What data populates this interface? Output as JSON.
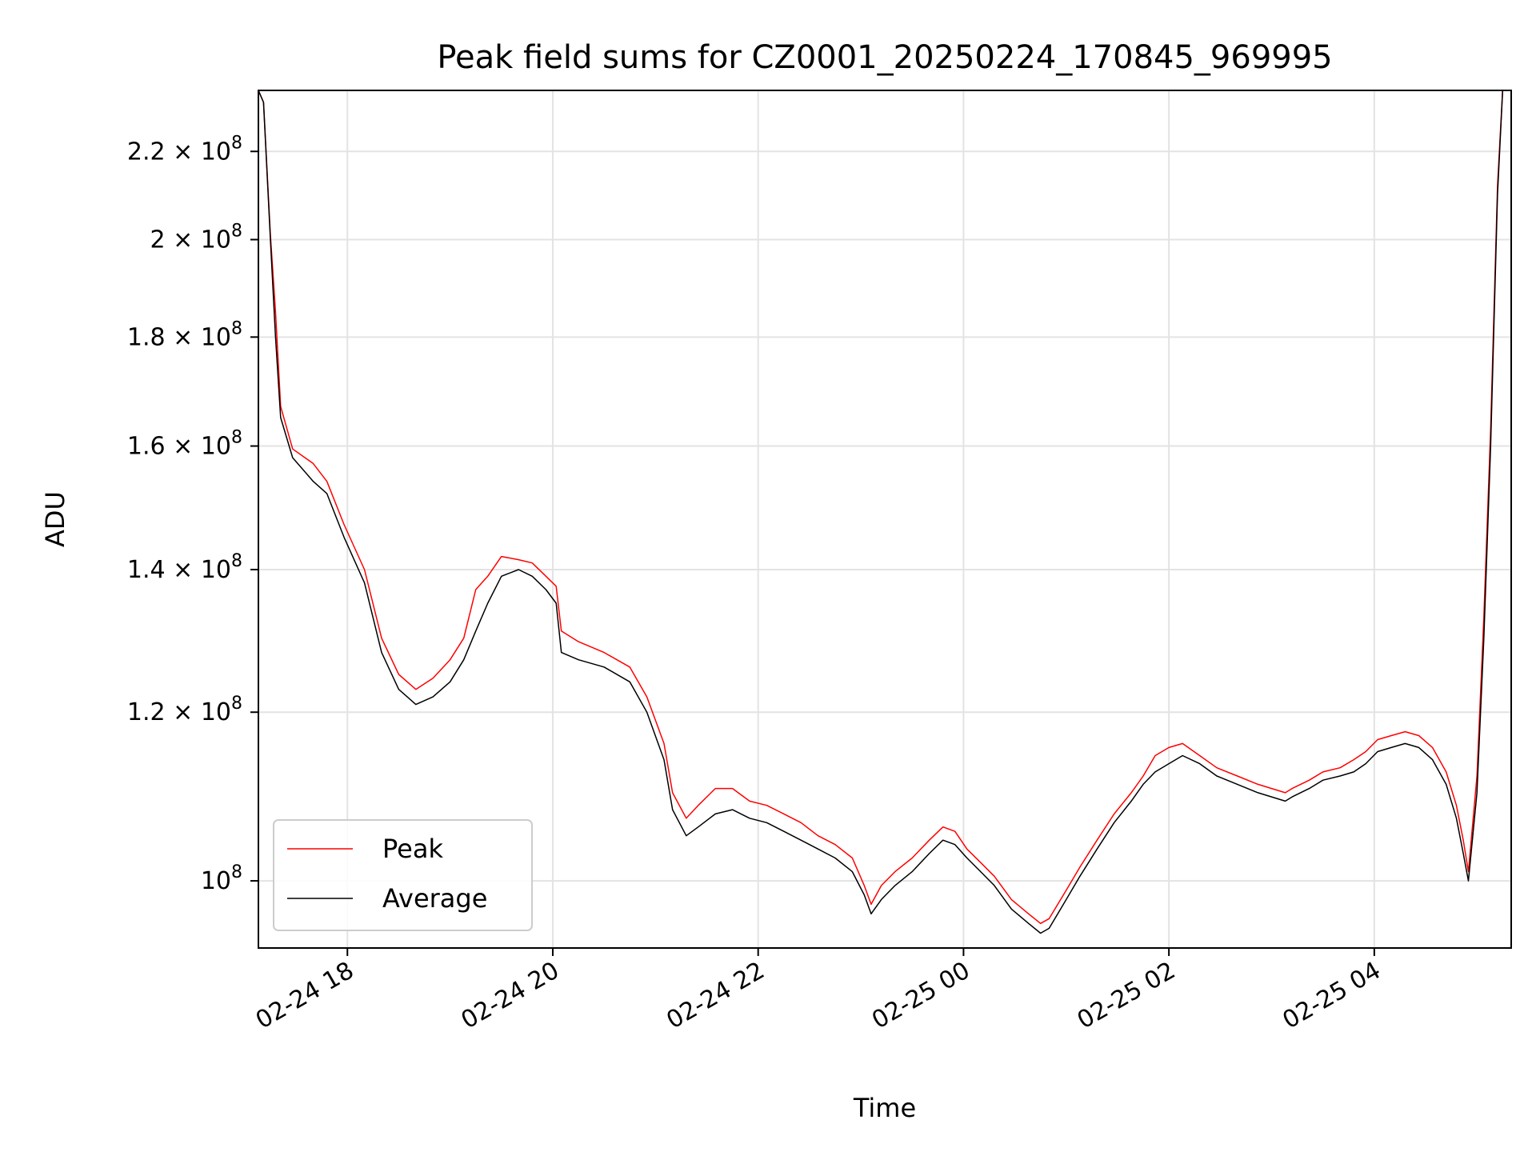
{
  "chart_data": {
    "type": "line",
    "title": "Peak field sums for CZ0001_20250224_170845_969995",
    "xlabel": "Time",
    "ylabel": "ADU",
    "y_scale": "log",
    "ylim": [
      93000000,
      235000000
    ],
    "xlim": [
      "2025-02-24 17:08",
      "2025-02-25 05:20"
    ],
    "grid": true,
    "legend": {
      "placement": "lower-left",
      "entries": [
        "Peak",
        "Average"
      ]
    },
    "x_ticks": [
      {
        "value": "2025-02-24 18:00",
        "label": "02-24 18"
      },
      {
        "value": "2025-02-24 20:00",
        "label": "02-24 20"
      },
      {
        "value": "2025-02-24 22:00",
        "label": "02-24 22"
      },
      {
        "value": "2025-02-25 00:00",
        "label": "02-25 00"
      },
      {
        "value": "2025-02-25 02:00",
        "label": "02-25 02"
      },
      {
        "value": "2025-02-25 04:00",
        "label": "02-25 04"
      }
    ],
    "y_ticks": [
      {
        "value": 100000000,
        "mant": "",
        "exp": "8"
      },
      {
        "value": 120000000,
        "mant": "1.2",
        "exp": "8"
      },
      {
        "value": 140000000,
        "mant": "1.4",
        "exp": "8"
      },
      {
        "value": 160000000,
        "mant": "1.6",
        "exp": "8"
      },
      {
        "value": 180000000,
        "mant": "1.8",
        "exp": "8"
      },
      {
        "value": 200000000,
        "mant": "2",
        "exp": "8"
      },
      {
        "value": 220000000,
        "mant": "2.2",
        "exp": "8"
      }
    ],
    "series": [
      {
        "name": "Average",
        "color": "#000000",
        "points": [
          [
            "2025-02-24 17:08",
            235000000
          ],
          [
            "2025-02-24 17:11",
            232000000
          ],
          [
            "2025-02-24 17:15",
            200000000
          ],
          [
            "2025-02-24 17:18",
            180000000
          ],
          [
            "2025-02-24 17:21",
            165000000
          ],
          [
            "2025-02-24 17:28",
            158000000
          ],
          [
            "2025-02-24 17:40",
            154000000
          ],
          [
            "2025-02-24 17:48",
            152000000
          ],
          [
            "2025-02-24 17:58",
            145000000
          ],
          [
            "2025-02-24 18:10",
            138000000
          ],
          [
            "2025-02-24 18:20",
            128000000
          ],
          [
            "2025-02-24 18:30",
            123000000
          ],
          [
            "2025-02-24 18:40",
            121000000
          ],
          [
            "2025-02-24 18:50",
            122000000
          ],
          [
            "2025-02-24 19:00",
            124000000
          ],
          [
            "2025-02-24 19:08",
            127000000
          ],
          [
            "2025-02-24 19:15",
            131000000
          ],
          [
            "2025-02-24 19:22",
            135000000
          ],
          [
            "2025-02-24 19:30",
            139000000
          ],
          [
            "2025-02-24 19:40",
            140000000
          ],
          [
            "2025-02-24 19:48",
            139000000
          ],
          [
            "2025-02-24 19:56",
            137000000
          ],
          [
            "2025-02-24 20:02",
            135000000
          ],
          [
            "2025-02-24 20:05",
            128000000
          ],
          [
            "2025-02-24 20:15",
            127000000
          ],
          [
            "2025-02-24 20:30",
            126000000
          ],
          [
            "2025-02-24 20:45",
            124000000
          ],
          [
            "2025-02-24 20:55",
            120000000
          ],
          [
            "2025-02-24 21:05",
            114000000
          ],
          [
            "2025-02-24 21:10",
            108000000
          ],
          [
            "2025-02-24 21:18",
            105000000
          ],
          [
            "2025-02-24 21:25",
            106000000
          ],
          [
            "2025-02-24 21:35",
            107500000
          ],
          [
            "2025-02-24 21:45",
            108000000
          ],
          [
            "2025-02-24 21:55",
            107000000
          ],
          [
            "2025-02-24 22:05",
            106500000
          ],
          [
            "2025-02-24 22:15",
            105500000
          ],
          [
            "2025-02-24 22:25",
            104500000
          ],
          [
            "2025-02-24 22:35",
            103500000
          ],
          [
            "2025-02-24 22:45",
            102500000
          ],
          [
            "2025-02-24 22:55",
            101000000
          ],
          [
            "2025-02-24 23:02",
            98500000
          ],
          [
            "2025-02-24 23:06",
            96500000
          ],
          [
            "2025-02-24 23:12",
            98000000
          ],
          [
            "2025-02-24 23:20",
            99500000
          ],
          [
            "2025-02-24 23:30",
            101000000
          ],
          [
            "2025-02-24 23:40",
            103000000
          ],
          [
            "2025-02-24 23:48",
            104500000
          ],
          [
            "2025-02-24 23:55",
            104000000
          ],
          [
            "2025-02-25 00:02",
            102500000
          ],
          [
            "2025-02-25 00:10",
            101000000
          ],
          [
            "2025-02-25 00:18",
            99500000
          ],
          [
            "2025-02-25 00:28",
            97000000
          ],
          [
            "2025-02-25 00:38",
            95500000
          ],
          [
            "2025-02-25 00:45",
            94500000
          ],
          [
            "2025-02-25 00:50",
            95000000
          ],
          [
            "2025-02-25 01:00",
            98000000
          ],
          [
            "2025-02-25 01:08",
            100500000
          ],
          [
            "2025-02-25 01:18",
            103500000
          ],
          [
            "2025-02-25 01:28",
            106500000
          ],
          [
            "2025-02-25 01:38",
            109000000
          ],
          [
            "2025-02-25 01:45",
            111000000
          ],
          [
            "2025-02-25 01:52",
            112500000
          ],
          [
            "2025-02-25 02:00",
            113500000
          ],
          [
            "2025-02-25 02:08",
            114500000
          ],
          [
            "2025-02-25 02:18",
            113500000
          ],
          [
            "2025-02-25 02:28",
            112000000
          ],
          [
            "2025-02-25 02:40",
            111000000
          ],
          [
            "2025-02-25 02:52",
            110000000
          ],
          [
            "2025-02-25 03:00",
            109500000
          ],
          [
            "2025-02-25 03:08",
            109000000
          ],
          [
            "2025-02-25 03:12",
            109500000
          ],
          [
            "2025-02-25 03:22",
            110500000
          ],
          [
            "2025-02-25 03:30",
            111500000
          ],
          [
            "2025-02-25 03:40",
            112000000
          ],
          [
            "2025-02-25 03:48",
            112500000
          ],
          [
            "2025-02-25 03:55",
            113500000
          ],
          [
            "2025-02-25 04:02",
            115000000
          ],
          [
            "2025-02-25 04:10",
            115500000
          ],
          [
            "2025-02-25 04:18",
            116000000
          ],
          [
            "2025-02-25 04:26",
            115500000
          ],
          [
            "2025-02-25 04:34",
            114000000
          ],
          [
            "2025-02-25 04:42",
            111000000
          ],
          [
            "2025-02-25 04:48",
            107000000
          ],
          [
            "2025-02-25 04:52",
            103000000
          ],
          [
            "2025-02-25 04:55",
            100000000
          ],
          [
            "2025-02-25 05:00",
            110000000
          ],
          [
            "2025-02-25 05:04",
            130000000
          ],
          [
            "2025-02-25 05:08",
            160000000
          ],
          [
            "2025-02-25 05:12",
            210000000
          ],
          [
            "2025-02-25 05:15",
            235000000
          ]
        ]
      },
      {
        "name": "Peak",
        "color": "#ff0000",
        "points": [
          [
            "2025-02-24 17:08",
            235000000
          ],
          [
            "2025-02-24 17:11",
            232000000
          ],
          [
            "2025-02-24 17:15",
            201000000
          ],
          [
            "2025-02-24 17:18",
            185000000
          ],
          [
            "2025-02-24 17:21",
            167000000
          ],
          [
            "2025-02-24 17:28",
            159500000
          ],
          [
            "2025-02-24 17:40",
            157000000
          ],
          [
            "2025-02-24 17:48",
            154000000
          ],
          [
            "2025-02-24 17:58",
            147000000
          ],
          [
            "2025-02-24 18:10",
            140000000
          ],
          [
            "2025-02-24 18:20",
            130000000
          ],
          [
            "2025-02-24 18:30",
            125000000
          ],
          [
            "2025-02-24 18:40",
            123000000
          ],
          [
            "2025-02-24 18:50",
            124500000
          ],
          [
            "2025-02-24 19:00",
            127000000
          ],
          [
            "2025-02-24 19:08",
            130000000
          ],
          [
            "2025-02-24 19:15",
            137000000
          ],
          [
            "2025-02-24 19:22",
            139000000
          ],
          [
            "2025-02-24 19:30",
            142000000
          ],
          [
            "2025-02-24 19:40",
            141500000
          ],
          [
            "2025-02-24 19:48",
            141000000
          ],
          [
            "2025-02-24 19:56",
            139000000
          ],
          [
            "2025-02-24 20:02",
            137500000
          ],
          [
            "2025-02-24 20:05",
            131000000
          ],
          [
            "2025-02-24 20:15",
            129500000
          ],
          [
            "2025-02-24 20:30",
            128000000
          ],
          [
            "2025-02-24 20:45",
            126000000
          ],
          [
            "2025-02-24 20:55",
            122000000
          ],
          [
            "2025-02-24 21:05",
            116000000
          ],
          [
            "2025-02-24 21:10",
            110000000
          ],
          [
            "2025-02-24 21:18",
            107000000
          ],
          [
            "2025-02-24 21:25",
            108500000
          ],
          [
            "2025-02-24 21:35",
            110500000
          ],
          [
            "2025-02-24 21:45",
            110500000
          ],
          [
            "2025-02-24 21:55",
            109000000
          ],
          [
            "2025-02-24 22:05",
            108500000
          ],
          [
            "2025-02-24 22:15",
            107500000
          ],
          [
            "2025-02-24 22:25",
            106500000
          ],
          [
            "2025-02-24 22:35",
            105000000
          ],
          [
            "2025-02-24 22:45",
            104000000
          ],
          [
            "2025-02-24 22:55",
            102500000
          ],
          [
            "2025-02-24 23:02",
            99500000
          ],
          [
            "2025-02-24 23:06",
            97500000
          ],
          [
            "2025-02-24 23:12",
            99500000
          ],
          [
            "2025-02-24 23:20",
            101000000
          ],
          [
            "2025-02-24 23:30",
            102500000
          ],
          [
            "2025-02-24 23:40",
            104500000
          ],
          [
            "2025-02-24 23:48",
            106000000
          ],
          [
            "2025-02-24 23:55",
            105500000
          ],
          [
            "2025-02-25 00:02",
            103500000
          ],
          [
            "2025-02-25 00:10",
            102000000
          ],
          [
            "2025-02-25 00:18",
            100500000
          ],
          [
            "2025-02-25 00:28",
            98000000
          ],
          [
            "2025-02-25 00:38",
            96500000
          ],
          [
            "2025-02-25 00:45",
            95500000
          ],
          [
            "2025-02-25 00:50",
            96000000
          ],
          [
            "2025-02-25 01:00",
            99000000
          ],
          [
            "2025-02-25 01:08",
            101500000
          ],
          [
            "2025-02-25 01:18",
            104500000
          ],
          [
            "2025-02-25 01:28",
            107500000
          ],
          [
            "2025-02-25 01:38",
            110000000
          ],
          [
            "2025-02-25 01:45",
            112000000
          ],
          [
            "2025-02-25 01:52",
            114500000
          ],
          [
            "2025-02-25 02:00",
            115500000
          ],
          [
            "2025-02-25 02:08",
            116000000
          ],
          [
            "2025-02-25 02:18",
            114500000
          ],
          [
            "2025-02-25 02:28",
            113000000
          ],
          [
            "2025-02-25 02:40",
            112000000
          ],
          [
            "2025-02-25 02:52",
            111000000
          ],
          [
            "2025-02-25 03:00",
            110500000
          ],
          [
            "2025-02-25 03:08",
            110000000
          ],
          [
            "2025-02-25 03:12",
            110500000
          ],
          [
            "2025-02-25 03:22",
            111500000
          ],
          [
            "2025-02-25 03:30",
            112500000
          ],
          [
            "2025-02-25 03:40",
            113000000
          ],
          [
            "2025-02-25 03:48",
            114000000
          ],
          [
            "2025-02-25 03:55",
            115000000
          ],
          [
            "2025-02-25 04:02",
            116500000
          ],
          [
            "2025-02-25 04:10",
            117000000
          ],
          [
            "2025-02-25 04:18",
            117500000
          ],
          [
            "2025-02-25 04:26",
            117000000
          ],
          [
            "2025-02-25 04:34",
            115500000
          ],
          [
            "2025-02-25 04:42",
            112500000
          ],
          [
            "2025-02-25 04:48",
            108500000
          ],
          [
            "2025-02-25 04:52",
            104500000
          ],
          [
            "2025-02-25 04:55",
            101000000
          ],
          [
            "2025-02-25 05:00",
            112000000
          ],
          [
            "2025-02-25 05:04",
            133000000
          ],
          [
            "2025-02-25 05:08",
            163000000
          ],
          [
            "2025-02-25 05:12",
            212000000
          ],
          [
            "2025-02-25 05:15",
            235000000
          ]
        ]
      }
    ]
  }
}
